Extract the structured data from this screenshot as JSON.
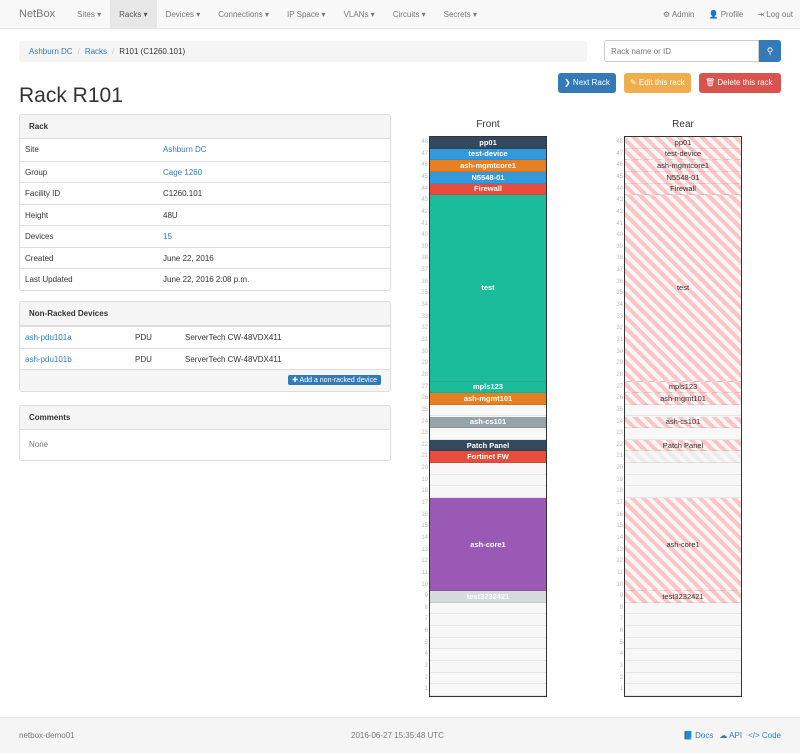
{
  "nav": {
    "brand": "NetBox",
    "items": [
      "Sites ▾",
      "Racks ▾",
      "Devices ▾",
      "Connections ▾",
      "IP Space ▾",
      "VLANs ▾",
      "Circuits ▾",
      "Secrets ▾"
    ],
    "admin": "⚙ Admin",
    "profile": "👤 Profile",
    "logout": "⇥ Log out"
  },
  "breadcrumb": {
    "site": "Ashburn DC",
    "racks": "Racks",
    "current": "R101 (C1260.101)"
  },
  "search": {
    "placeholder": "Rack name or ID",
    "icon": "search-icon"
  },
  "buttons": {
    "next": "❯ Next Rack",
    "edit": "✎ Edit this rack",
    "delete": "🗑 Delete this rack"
  },
  "title": "Rack R101",
  "rack_panel": {
    "heading": "Rack",
    "rows": [
      [
        "Site",
        "Ashburn DC"
      ],
      [
        "Group",
        "Cage 1260"
      ],
      [
        "Facility ID",
        "C1260.101"
      ],
      [
        "Height",
        "48U"
      ],
      [
        "Devices",
        "15"
      ],
      [
        "Created",
        "June 22, 2016"
      ],
      [
        "Last Updated",
        "June 22, 2016 2:08 p.m."
      ]
    ]
  },
  "nonracked": {
    "heading": "Non-Racked Devices",
    "rows": [
      [
        "ash-pdu101a",
        "PDU",
        "ServerTech CW-48VDX411"
      ],
      [
        "ash-pdu101b",
        "PDU",
        "ServerTech CW-48VDX411"
      ]
    ],
    "add": "✚ Add a non-racked device"
  },
  "comments": {
    "heading": "Comments",
    "body": "None"
  },
  "rack": {
    "height": 48,
    "front_title": "Front",
    "rear_title": "Rear",
    "devices": [
      {
        "name": "pp01",
        "top": 48,
        "size": 1,
        "color": "#34495e"
      },
      {
        "name": "test-device",
        "top": 47,
        "size": 1,
        "color": "#3498db"
      },
      {
        "name": "ash-mgmtcore1",
        "top": 46,
        "size": 1,
        "color": "#e67e22"
      },
      {
        "name": "N5548-01",
        "top": 45,
        "size": 1,
        "color": "#3498db"
      },
      {
        "name": "Firewall",
        "top": 44,
        "size": 1,
        "color": "#e74c3c"
      },
      {
        "name": "test",
        "top": 43,
        "size": 16,
        "color": "#1abc9c"
      },
      {
        "name": "mpls123",
        "top": 27,
        "size": 1,
        "color": "#1abc9c"
      },
      {
        "name": "ash-mgmt101",
        "top": 26,
        "size": 1,
        "color": "#e67e22"
      },
      {
        "name": "ash-cs101",
        "top": 24,
        "size": 1,
        "color": "#95a5a6"
      },
      {
        "name": "Patch Panel",
        "top": 22,
        "size": 1,
        "color": "#34495e"
      },
      {
        "name": "Fortinet FW",
        "top": 21,
        "size": 1,
        "color": "#e74c3c",
        "rear_hidden": true
      },
      {
        "name": "ash-core1",
        "top": 17,
        "size": 8,
        "color": "#9b59b6"
      },
      {
        "name": "test3232421",
        "top": 9,
        "size": 1,
        "color": "#d5dbdd"
      }
    ]
  },
  "footer": {
    "host": "netbox-demo01",
    "time": "2016-06-27 15:35:48 UTC",
    "docs": "📘 Docs",
    "api": "☁ API",
    "code": "</> Code"
  }
}
